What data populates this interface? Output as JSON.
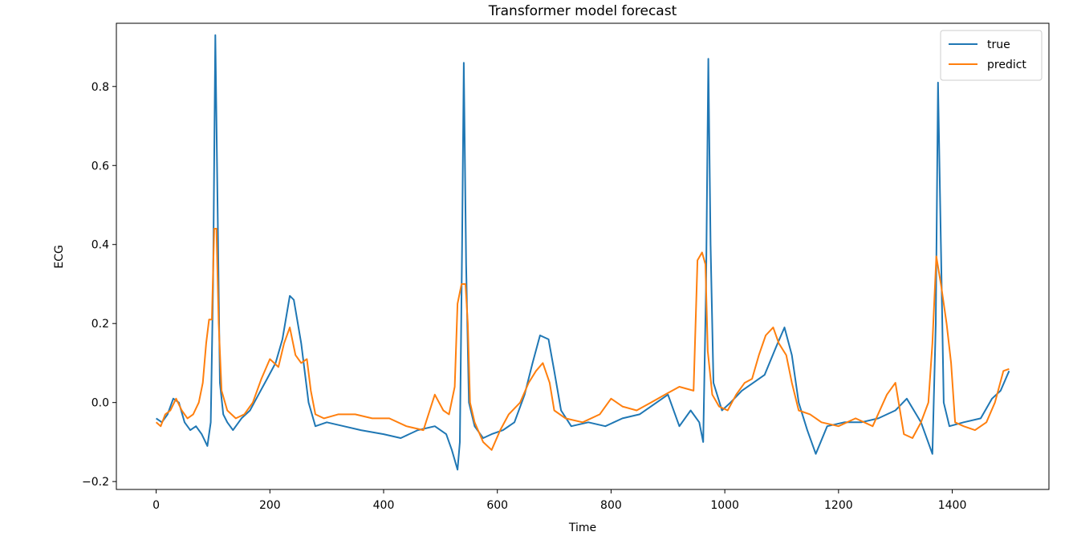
{
  "chart_data": {
    "type": "line",
    "title": "Transformer model forecast",
    "xlabel": "Time",
    "ylabel": "ECG",
    "xlim": [
      -70,
      1570
    ],
    "ylim": [
      -0.22,
      0.96
    ],
    "x_ticks": [
      0,
      200,
      400,
      600,
      800,
      1000,
      1200,
      1400
    ],
    "y_ticks": [
      -0.2,
      0.0,
      0.2,
      0.4,
      0.6,
      0.8
    ],
    "x_tick_labels": [
      "0",
      "200",
      "400",
      "600",
      "800",
      "1000",
      "1200",
      "1400"
    ],
    "y_tick_labels": [
      "−0.2",
      "0.0",
      "0.2",
      "0.4",
      "0.6",
      "0.8"
    ],
    "grid": false,
    "legend_position": "top-right",
    "series": [
      {
        "name": "true",
        "color": "#1f77b4",
        "points": [
          [
            0,
            -0.04
          ],
          [
            10,
            -0.05
          ],
          [
            20,
            -0.03
          ],
          [
            30,
            0.01
          ],
          [
            40,
            0.0
          ],
          [
            50,
            -0.05
          ],
          [
            60,
            -0.07
          ],
          [
            70,
            -0.06
          ],
          [
            80,
            -0.08
          ],
          [
            90,
            -0.11
          ],
          [
            96,
            -0.05
          ],
          [
            100,
            0.3
          ],
          [
            104,
            0.93
          ],
          [
            108,
            0.5
          ],
          [
            112,
            0.05
          ],
          [
            118,
            -0.03
          ],
          [
            125,
            -0.05
          ],
          [
            135,
            -0.07
          ],
          [
            150,
            -0.04
          ],
          [
            165,
            -0.02
          ],
          [
            180,
            0.02
          ],
          [
            195,
            0.06
          ],
          [
            210,
            0.1
          ],
          [
            222,
            0.16
          ],
          [
            235,
            0.27
          ],
          [
            242,
            0.26
          ],
          [
            255,
            0.15
          ],
          [
            268,
            0.0
          ],
          [
            280,
            -0.06
          ],
          [
            300,
            -0.05
          ],
          [
            330,
            -0.06
          ],
          [
            360,
            -0.07
          ],
          [
            400,
            -0.08
          ],
          [
            430,
            -0.09
          ],
          [
            460,
            -0.07
          ],
          [
            490,
            -0.06
          ],
          [
            510,
            -0.08
          ],
          [
            520,
            -0.12
          ],
          [
            530,
            -0.17
          ],
          [
            534,
            -0.1
          ],
          [
            538,
            0.4
          ],
          [
            541,
            0.86
          ],
          [
            545,
            0.35
          ],
          [
            550,
            0.0
          ],
          [
            560,
            -0.06
          ],
          [
            575,
            -0.09
          ],
          [
            590,
            -0.08
          ],
          [
            610,
            -0.07
          ],
          [
            630,
            -0.05
          ],
          [
            648,
            0.02
          ],
          [
            662,
            0.1
          ],
          [
            675,
            0.17
          ],
          [
            690,
            0.16
          ],
          [
            700,
            0.08
          ],
          [
            712,
            -0.02
          ],
          [
            730,
            -0.06
          ],
          [
            760,
            -0.05
          ],
          [
            790,
            -0.06
          ],
          [
            820,
            -0.04
          ],
          [
            850,
            -0.03
          ],
          [
            880,
            0.0
          ],
          [
            900,
            0.02
          ],
          [
            920,
            -0.06
          ],
          [
            940,
            -0.02
          ],
          [
            955,
            -0.05
          ],
          [
            962,
            -0.1
          ],
          [
            967,
            0.3
          ],
          [
            971,
            0.87
          ],
          [
            975,
            0.4
          ],
          [
            980,
            0.05
          ],
          [
            995,
            -0.02
          ],
          [
            1010,
            0.0
          ],
          [
            1030,
            0.03
          ],
          [
            1050,
            0.05
          ],
          [
            1070,
            0.07
          ],
          [
            1090,
            0.14
          ],
          [
            1105,
            0.19
          ],
          [
            1118,
            0.12
          ],
          [
            1130,
            0.0
          ],
          [
            1145,
            -0.07
          ],
          [
            1160,
            -0.13
          ],
          [
            1180,
            -0.06
          ],
          [
            1210,
            -0.05
          ],
          [
            1240,
            -0.05
          ],
          [
            1270,
            -0.04
          ],
          [
            1300,
            -0.02
          ],
          [
            1320,
            0.01
          ],
          [
            1345,
            -0.05
          ],
          [
            1365,
            -0.13
          ],
          [
            1371,
            0.2
          ],
          [
            1375,
            0.81
          ],
          [
            1380,
            0.4
          ],
          [
            1385,
            0.0
          ],
          [
            1395,
            -0.06
          ],
          [
            1420,
            -0.05
          ],
          [
            1450,
            -0.04
          ],
          [
            1470,
            0.01
          ],
          [
            1485,
            0.03
          ],
          [
            1500,
            0.08
          ]
        ]
      },
      {
        "name": "predict",
        "color": "#ff7f0e",
        "points": [
          [
            0,
            -0.05
          ],
          [
            8,
            -0.06
          ],
          [
            16,
            -0.03
          ],
          [
            25,
            -0.02
          ],
          [
            35,
            0.01
          ],
          [
            45,
            -0.02
          ],
          [
            55,
            -0.04
          ],
          [
            65,
            -0.03
          ],
          [
            75,
            0.0
          ],
          [
            82,
            0.05
          ],
          [
            88,
            0.15
          ],
          [
            93,
            0.21
          ],
          [
            98,
            0.21
          ],
          [
            102,
            0.44
          ],
          [
            106,
            0.44
          ],
          [
            110,
            0.2
          ],
          [
            115,
            0.03
          ],
          [
            125,
            -0.02
          ],
          [
            140,
            -0.04
          ],
          [
            155,
            -0.03
          ],
          [
            170,
            0.0
          ],
          [
            185,
            0.06
          ],
          [
            200,
            0.11
          ],
          [
            215,
            0.09
          ],
          [
            225,
            0.15
          ],
          [
            235,
            0.19
          ],
          [
            245,
            0.12
          ],
          [
            255,
            0.1
          ],
          [
            265,
            0.11
          ],
          [
            272,
            0.03
          ],
          [
            280,
            -0.03
          ],
          [
            295,
            -0.04
          ],
          [
            320,
            -0.03
          ],
          [
            350,
            -0.03
          ],
          [
            380,
            -0.04
          ],
          [
            410,
            -0.04
          ],
          [
            440,
            -0.06
          ],
          [
            470,
            -0.07
          ],
          [
            490,
            0.02
          ],
          [
            505,
            -0.02
          ],
          [
            515,
            -0.03
          ],
          [
            525,
            0.04
          ],
          [
            530,
            0.25
          ],
          [
            537,
            0.3
          ],
          [
            544,
            0.3
          ],
          [
            548,
            0.2
          ],
          [
            552,
            0.0
          ],
          [
            560,
            -0.05
          ],
          [
            575,
            -0.1
          ],
          [
            590,
            -0.12
          ],
          [
            605,
            -0.07
          ],
          [
            620,
            -0.03
          ],
          [
            640,
            0.0
          ],
          [
            655,
            0.05
          ],
          [
            668,
            0.08
          ],
          [
            680,
            0.1
          ],
          [
            692,
            0.05
          ],
          [
            700,
            -0.02
          ],
          [
            720,
            -0.04
          ],
          [
            750,
            -0.05
          ],
          [
            780,
            -0.03
          ],
          [
            800,
            0.01
          ],
          [
            820,
            -0.01
          ],
          [
            845,
            -0.02
          ],
          [
            870,
            0.0
          ],
          [
            895,
            0.02
          ],
          [
            920,
            0.04
          ],
          [
            945,
            0.03
          ],
          [
            952,
            0.36
          ],
          [
            960,
            0.38
          ],
          [
            966,
            0.35
          ],
          [
            970,
            0.13
          ],
          [
            978,
            0.02
          ],
          [
            990,
            -0.01
          ],
          [
            1005,
            -0.02
          ],
          [
            1020,
            0.02
          ],
          [
            1035,
            0.05
          ],
          [
            1048,
            0.06
          ],
          [
            1060,
            0.12
          ],
          [
            1072,
            0.17
          ],
          [
            1085,
            0.19
          ],
          [
            1095,
            0.15
          ],
          [
            1108,
            0.12
          ],
          [
            1118,
            0.05
          ],
          [
            1130,
            -0.02
          ],
          [
            1150,
            -0.03
          ],
          [
            1170,
            -0.05
          ],
          [
            1200,
            -0.06
          ],
          [
            1230,
            -0.04
          ],
          [
            1260,
            -0.06
          ],
          [
            1285,
            0.02
          ],
          [
            1300,
            0.05
          ],
          [
            1315,
            -0.08
          ],
          [
            1330,
            -0.09
          ],
          [
            1345,
            -0.05
          ],
          [
            1358,
            0.0
          ],
          [
            1365,
            0.15
          ],
          [
            1372,
            0.37
          ],
          [
            1380,
            0.3
          ],
          [
            1390,
            0.2
          ],
          [
            1398,
            0.1
          ],
          [
            1405,
            -0.05
          ],
          [
            1420,
            -0.06
          ],
          [
            1440,
            -0.07
          ],
          [
            1460,
            -0.05
          ],
          [
            1475,
            0.0
          ],
          [
            1490,
            0.08
          ],
          [
            1500,
            0.085
          ]
        ]
      }
    ]
  }
}
